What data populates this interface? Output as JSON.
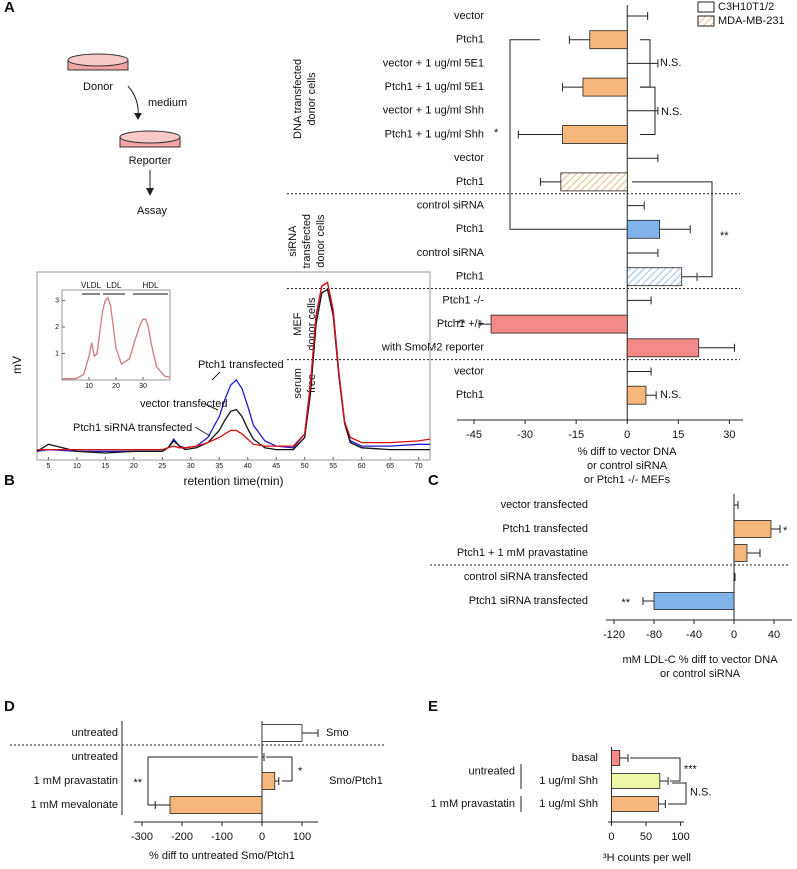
{
  "diagram": {
    "donor": "Donor",
    "medium": "medium",
    "reporter": "Reporter",
    "assay": "Assay"
  },
  "chart_data": [
    {
      "type": "bar",
      "panel": "A",
      "horizontal": true,
      "categories": [
        "vector",
        "Ptch1",
        "vector + 1 ug/ml 5E1",
        "Ptch1 + 1 ug/ml 5E1",
        "vector + 1 ug/ml Shh",
        "Ptch1 + 1 ug/ml Shh",
        "vector",
        "Ptch1",
        "control siRNA",
        "Ptch1",
        "control siRNA",
        "Ptch1",
        "Ptch1 -/-",
        "Ptch1 +/+",
        "with SmoM2 reporter",
        "vector",
        "Ptch1"
      ],
      "values": [
        0,
        -11,
        0,
        -13,
        0,
        -19,
        0,
        -19.5,
        0,
        9.5,
        0,
        16,
        0,
        -40,
        21,
        0,
        5.5
      ],
      "errors": [
        6,
        6,
        9,
        6,
        9,
        13,
        9,
        6,
        5,
        9,
        9,
        4.5,
        7,
        3.5,
        10.5,
        7,
        3
      ],
      "colors": [
        "#ffffff",
        "#f5b77c",
        "#ffffff",
        "#f5b77c",
        "#ffffff",
        "#f5b77c",
        "#ffffff",
        "#e8a86a",
        "#ffffff",
        "#80b3ea",
        "#ffffff",
        "#80b3ea",
        "#ffffff",
        "#f4898a",
        "#f4898a",
        "#ffffff",
        "#f5b77c"
      ],
      "patterns": [
        "solid",
        "solid",
        "solid",
        "solid",
        "solid",
        "solid",
        "solid",
        "hatch",
        "solid",
        "solid",
        "solid",
        "hatch",
        "solid",
        "solid",
        "solid",
        "solid",
        "solid"
      ],
      "legend": [
        {
          "name": "C3H10T1/2",
          "color": "#ffffff",
          "pattern": "solid"
        },
        {
          "name": "MDA-MB-231",
          "color": "#e8a86a",
          "pattern": "hatch"
        }
      ],
      "groups": [
        [
          "DNA transfected",
          "donor cells"
        ],
        [
          "siRNA",
          "transfected",
          "donor cells"
        ],
        [
          "MEF",
          "donor cells"
        ],
        [
          "serum",
          "free"
        ]
      ],
      "annotations": [
        "N.S.",
        "N.S.",
        "*",
        "**",
        "**",
        "N.S."
      ],
      "xlim": [
        -50,
        34
      ],
      "xticks": [
        -45,
        -30,
        -15,
        0,
        15,
        30
      ],
      "xlabel": [
        "% diff to vector DNA",
        "or control siRNA",
        "or Ptch1 -/- MEFs"
      ]
    },
    {
      "type": "line",
      "panel": "B",
      "x": [
        3,
        5,
        10,
        15,
        20,
        25,
        26,
        27,
        28,
        29,
        31,
        33,
        35,
        36,
        37,
        38,
        39,
        40,
        41,
        43,
        45,
        48,
        50,
        51,
        52,
        53,
        54,
        55,
        56,
        57,
        58,
        60,
        65,
        70,
        72
      ],
      "series": [
        {
          "name": "Ptch1 transfected",
          "color": "#1f1fd0",
          "values": [
            0.02,
            0.03,
            0.02,
            0.02,
            0.02,
            0.02,
            0.04,
            0.09,
            0.05,
            0.04,
            0.05,
            0.1,
            0.22,
            0.32,
            0.4,
            0.43,
            0.38,
            0.28,
            0.17,
            0.08,
            0.05,
            0.04,
            0.12,
            0.4,
            0.8,
            0.97,
            0.99,
            0.83,
            0.47,
            0.19,
            0.08,
            0.05,
            0.05,
            0.06,
            0.06
          ]
        },
        {
          "name": "vector transfected",
          "color": "#111111",
          "values": [
            0.02,
            0.06,
            0.02,
            0.01,
            0.02,
            0.02,
            0.04,
            0.08,
            0.05,
            0.03,
            0.04,
            0.07,
            0.14,
            0.2,
            0.25,
            0.26,
            0.22,
            0.15,
            0.09,
            0.04,
            0.03,
            0.03,
            0.1,
            0.35,
            0.75,
            0.93,
            0.95,
            0.8,
            0.45,
            0.18,
            0.07,
            0.04,
            0.03,
            0.03,
            0.03
          ]
        },
        {
          "name": "Ptch1 siRNA transfected",
          "color": "#e01010",
          "values": [
            0.03,
            0.03,
            0.03,
            0.03,
            0.03,
            0.03,
            0.04,
            0.05,
            0.04,
            0.04,
            0.05,
            0.07,
            0.1,
            0.12,
            0.14,
            0.14,
            0.12,
            0.09,
            0.06,
            0.05,
            0.05,
            0.05,
            0.12,
            0.4,
            0.8,
            0.97,
            0.99,
            0.83,
            0.47,
            0.19,
            0.1,
            0.07,
            0.07,
            0.08,
            0.09
          ]
        }
      ],
      "xlim": [
        3,
        72
      ],
      "xticks": [
        5,
        10,
        15,
        20,
        25,
        30,
        35,
        40,
        45,
        50,
        55,
        60,
        65,
        70
      ],
      "ylim": [
        -0.03,
        1.05
      ],
      "xlabel": "retention time(min)",
      "ylabel": "mV"
    },
    {
      "type": "line",
      "x": [
        0,
        5,
        8,
        10,
        11,
        12,
        13,
        14,
        15,
        16,
        17,
        18,
        19,
        20,
        22,
        25,
        27,
        29,
        30,
        31,
        32,
        33,
        35,
        38,
        40
      ],
      "series": [
        {
          "color": "#d07a7a",
          "values": [
            0.05,
            0.05,
            0.2,
            0.9,
            1.4,
            0.9,
            1.0,
            1.8,
            2.6,
            3.0,
            3.1,
            2.8,
            2.0,
            1.2,
            0.6,
            0.8,
            1.5,
            2.1,
            2.3,
            2.3,
            2.0,
            1.4,
            0.5,
            0.15,
            0.1
          ]
        }
      ],
      "labels": [
        "VLDL",
        "LDL",
        "HDL"
      ],
      "xlim": [
        0,
        40
      ],
      "xticks": [
        10,
        20,
        30
      ],
      "ylim": [
        0,
        3.4
      ],
      "yticks": [
        1,
        2,
        3
      ]
    },
    {
      "type": "bar",
      "panel": "C",
      "horizontal": true,
      "categories": [
        "vector transfected",
        "Ptch1 transfected",
        "Ptch1 + 1 mM pravastatine",
        "control siRNA transfected",
        "Ptch1 siRNA transfected"
      ],
      "values": [
        0,
        37,
        13,
        0,
        -80
      ],
      "errors": [
        4,
        9,
        13,
        1,
        11
      ],
      "colors": [
        "#ffffff",
        "#f5b77c",
        "#f5b77c",
        "#ffffff",
        "#80b3ea"
      ],
      "patterns": [
        "solid",
        "solid",
        "solid",
        "solid",
        "solid"
      ],
      "annotations": [
        "*",
        "**"
      ],
      "xlim": [
        -128,
        58
      ],
      "xticks": [
        -120,
        -80,
        -40,
        0,
        40
      ],
      "xlabel": [
        "mM LDL-C % diff to vector DNA",
        "or control siRNA"
      ]
    },
    {
      "type": "bar",
      "panel": "D",
      "horizontal": true,
      "categories": [
        "untreated",
        "untreated",
        "1 mM pravastatin",
        "1 mM mevalonate"
      ],
      "values": [
        100,
        0,
        32,
        -230
      ],
      "errors": [
        40,
        5,
        10,
        37
      ],
      "colors": [
        "#ffffff",
        "#ffffff",
        "#f5b77c",
        "#f5b77c"
      ],
      "patterns": [
        "solid",
        "solid",
        "solid",
        "solid"
      ],
      "groups": [
        [
          "Smo"
        ],
        [
          "Smo/Ptch1"
        ]
      ],
      "annotations": [
        "**",
        "*"
      ],
      "xlim": [
        -320,
        140
      ],
      "xticks": [
        -300,
        -200,
        -100,
        0,
        100
      ],
      "xlabel": [
        "% diff to untreated Smo/Ptch1"
      ]
    },
    {
      "type": "bar",
      "panel": "E",
      "horizontal": true,
      "categories": [
        "basal",
        "1 ug/ml Shh",
        "1 ug/ml Shh"
      ],
      "values": [
        12,
        70,
        68
      ],
      "errors": [
        12,
        12,
        10
      ],
      "colors": [
        "#f4898a",
        "#eef7a7",
        "#f5b77c"
      ],
      "patterns": [
        "solid",
        "solid",
        "solid"
      ],
      "groups": [
        [
          "untreated"
        ],
        [
          "1 mM pravastatin"
        ]
      ],
      "annotations": [
        "***",
        "N.S."
      ],
      "xlim": [
        -5,
        105
      ],
      "xticks": [
        0,
        50,
        100
      ],
      "xlabel": [
        "³H counts per well"
      ]
    }
  ]
}
